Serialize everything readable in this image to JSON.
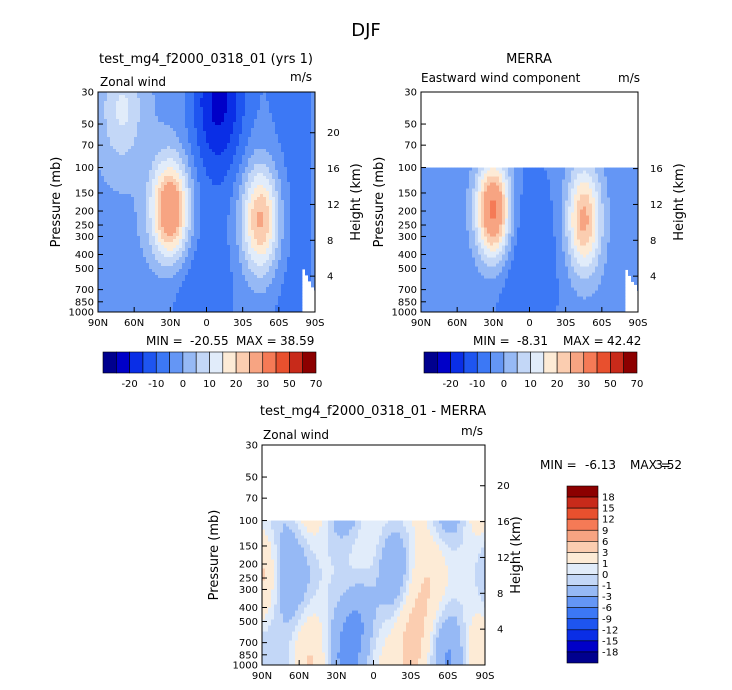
{
  "figure_title": "DJF",
  "colors": {
    "main": [
      "#00008e",
      "#0000c8",
      "#0a2ee6",
      "#1e55f0",
      "#3c78f5",
      "#6496f5",
      "#96b9f5",
      "#c3d7f7",
      "#e1ecfa",
      "#fdebd6",
      "#fbcdb0",
      "#f7a482",
      "#f57a56",
      "#e8502e",
      "#c82a1a",
      "#8c0000"
    ],
    "diff": [
      "#00008e",
      "#0000c8",
      "#0a2ee6",
      "#1e55f0",
      "#3c78f5",
      "#6496f5",
      "#96b9f5",
      "#c3d7f7",
      "#e1ecfa",
      "#fdebd6",
      "#fbcdb0",
      "#f7a482",
      "#f57a56",
      "#e8502e",
      "#c82a1a",
      "#8c0000"
    ]
  },
  "chart_data": [
    {
      "type": "heatmap",
      "title": "test_mg4_f2000_0318_01 (yrs 1)",
      "subtitle_left": "Zonal wind",
      "subtitle_right": "m/s",
      "ylabel": "Pressure (mb)",
      "ylabel_right": "Height (km)",
      "x_ticks": [
        "90N",
        "60N",
        "30N",
        "0",
        "30S",
        "60S",
        "90S"
      ],
      "y_ticks": [
        "30",
        "50",
        "70",
        "100",
        "150",
        "200",
        "250",
        "300",
        "400",
        "500",
        "700",
        "850",
        "1000"
      ],
      "y_ticks_right": [
        "20",
        "16",
        "12",
        "8",
        "4"
      ],
      "min_label": "MIN =",
      "min_value": "-20.55",
      "max_label": "MAX =",
      "max_value": "38.59",
      "top_pressure": 30,
      "jets": [
        {
          "lat": 30,
          "p": 200,
          "value": 38.59
        },
        {
          "lat": -45,
          "p": 230,
          "value": 30
        }
      ],
      "easterly_min": {
        "lat": -10,
        "p": 30,
        "value": -20.55
      }
    },
    {
      "type": "heatmap",
      "title": "MERRA",
      "subtitle_left": "Eastward wind component",
      "subtitle_right": "m/s",
      "ylabel": "Pressure (mb)",
      "ylabel_right": "Height (km)",
      "x_ticks": [
        "90N",
        "60N",
        "30N",
        "0",
        "30S",
        "60S",
        "90S"
      ],
      "y_ticks": [
        "30",
        "50",
        "70",
        "100",
        "150",
        "200",
        "250",
        "300",
        "400",
        "500",
        "700",
        "850",
        "1000"
      ],
      "y_ticks_right": [
        "16",
        "12",
        "8",
        "4"
      ],
      "min_label": "MIN =",
      "min_value": "-8.31",
      "max_label": "MAX =",
      "max_value": "42.42",
      "top_pressure": 100,
      "jets": [
        {
          "lat": 30,
          "p": 200,
          "value": 42.42
        },
        {
          "lat": -45,
          "p": 230,
          "value": 30
        }
      ]
    },
    {
      "type": "heatmap",
      "title": "test_mg4_f2000_0318_01 - MERRA",
      "subtitle_left": "Zonal wind",
      "subtitle_right": "m/s",
      "ylabel": "Pressure (mb)",
      "ylabel_right": "Height (km)",
      "x_ticks": [
        "90N",
        "60N",
        "30N",
        "0",
        "30S",
        "60S",
        "90S"
      ],
      "y_ticks": [
        "30",
        "50",
        "70",
        "100",
        "150",
        "200",
        "250",
        "300",
        "400",
        "500",
        "700",
        "850",
        "1000"
      ],
      "y_ticks_right": [
        "20",
        "16",
        "12",
        "8",
        "4"
      ],
      "min_label": "MIN =",
      "min_value": "-6.13",
      "max_label": "MAX =",
      "max_value": "3.52",
      "top_pressure": 100
    }
  ],
  "colorbar_main": {
    "labels": [
      "-20",
      "-10",
      "0",
      "10",
      "20",
      "30",
      "50",
      "70"
    ]
  },
  "colorbar_diff": {
    "labels": [
      "18",
      "15",
      "12",
      "9",
      "6",
      "3",
      "1",
      "0",
      "-1",
      "-3",
      "-6",
      "-9",
      "-12",
      "-15",
      "-18"
    ]
  }
}
